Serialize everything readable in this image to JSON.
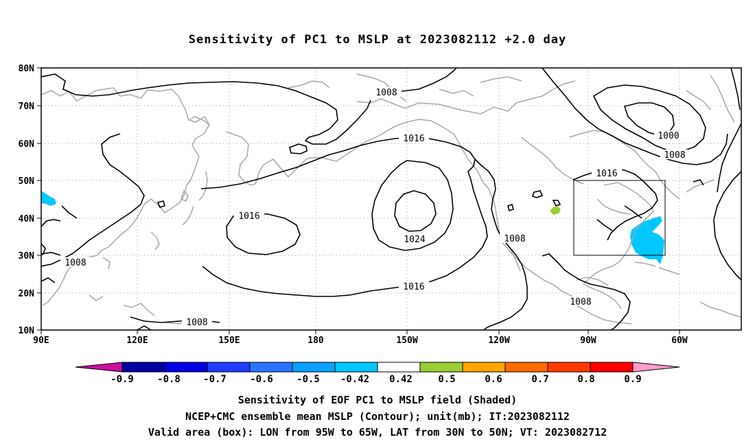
{
  "title": "Sensitivity of PC1 to MSLP at 2023082112 +2.0 day",
  "map": {
    "lat_ticks": [
      "80N",
      "70N",
      "60N",
      "50N",
      "40N",
      "30N",
      "20N",
      "10N"
    ],
    "lon_ticks": [
      "90E",
      "120E",
      "150E",
      "180",
      "150W",
      "120W",
      "90W",
      "60W"
    ],
    "lon_range": "90E to 35W",
    "lat_range": "10N to 80N",
    "grid": "dotted every 30 deg lon / 10 deg lat",
    "contour_labels": [
      {
        "id": "c1008a",
        "text": "1008"
      },
      {
        "id": "c1000",
        "text": "1000"
      },
      {
        "id": "c1008b",
        "text": "1008"
      },
      {
        "id": "c1016a",
        "text": "1016"
      },
      {
        "id": "c1016b",
        "text": "1016"
      },
      {
        "id": "c1016c",
        "text": "1016"
      },
      {
        "id": "c1024",
        "text": "1024"
      },
      {
        "id": "c1016d",
        "text": "1016"
      },
      {
        "id": "c1008c",
        "text": "1008"
      },
      {
        "id": "c1008d",
        "text": "1008"
      },
      {
        "id": "c1008e",
        "text": "1008"
      },
      {
        "id": "c1008f",
        "text": "1008"
      }
    ],
    "valid_box": {
      "lon": [
        -95,
        -65
      ],
      "lat": [
        30,
        50
      ]
    },
    "shaded_regions": [
      {
        "name": "western-pacific-patch",
        "class": "-0.5",
        "color": "#00c8ff"
      },
      {
        "name": "us-east-coast-patch",
        "class": "-0.5",
        "color": "#00c8ff"
      },
      {
        "name": "central-us-patch",
        "class": "0.5",
        "color": "#9acd32"
      }
    ]
  },
  "colorbar": {
    "labels": [
      "-0.9",
      "-0.8",
      "-0.7",
      "-0.6",
      "-0.5",
      "-0.42",
      "0.42",
      "0.5",
      "0.6",
      "0.7",
      "0.8",
      "0.9"
    ],
    "colors": [
      "#c8109a",
      "#0000a0",
      "#0000e6",
      "#1f3cff",
      "#2a73ff",
      "#0aa0ff",
      "#00c8ff",
      "#ffffff",
      "#9acd32",
      "#ffa500",
      "#ff6a00",
      "#ff3a00",
      "#ff0000",
      "#ff9ec8"
    ]
  },
  "captions": [
    "Sensitivity of EOF PC1 to MSLP field (Shaded)",
    "NCEP+CMC ensemble mean MSLP (Contour); unit(mb); IT:2023082112",
    "Valid area (box): LON from 95W to 65W, LAT from 30N to 50N; VT: 2023082712"
  ]
}
